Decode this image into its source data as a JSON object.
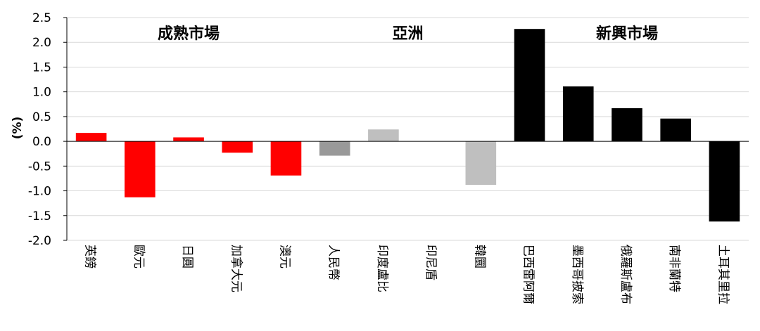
{
  "chart_data": {
    "type": "bar",
    "ylabel": "(%)",
    "ylim": [
      -2.0,
      2.5
    ],
    "yticks": [
      "2.5",
      "2.0",
      "1.5",
      "1.0",
      "0.5",
      "0.0",
      "-0.5",
      "-1.0",
      "-1.5",
      "-2.0"
    ],
    "grid": true,
    "groups": [
      {
        "label": "成熟市場",
        "start": 0,
        "end": 4
      },
      {
        "label": "亞洲",
        "start": 5,
        "end": 8
      },
      {
        "label": "新興市場",
        "start": 9,
        "end": 13
      }
    ],
    "categories": [
      "英鎊",
      "歐元",
      "日圓",
      "加拿大元",
      "澳元",
      "人民幣",
      "印度盧比",
      "印尼盾",
      "韓圜",
      "巴西雷阿爾",
      "墨西哥披索",
      "俄羅斯盧布",
      "南非蘭特",
      "土耳其里拉"
    ],
    "values": [
      0.17,
      -1.13,
      0.08,
      -0.23,
      -0.69,
      -0.29,
      0.24,
      0.0,
      -0.88,
      2.27,
      1.11,
      0.67,
      0.46,
      -1.62
    ],
    "colors": [
      "#ff0000",
      "#ff0000",
      "#ff0000",
      "#ff0000",
      "#ff0000",
      "#999999",
      "#bfbfbf",
      "#bfbfbf",
      "#bfbfbf",
      "#000000",
      "#000000",
      "#000000",
      "#000000",
      "#000000"
    ]
  }
}
